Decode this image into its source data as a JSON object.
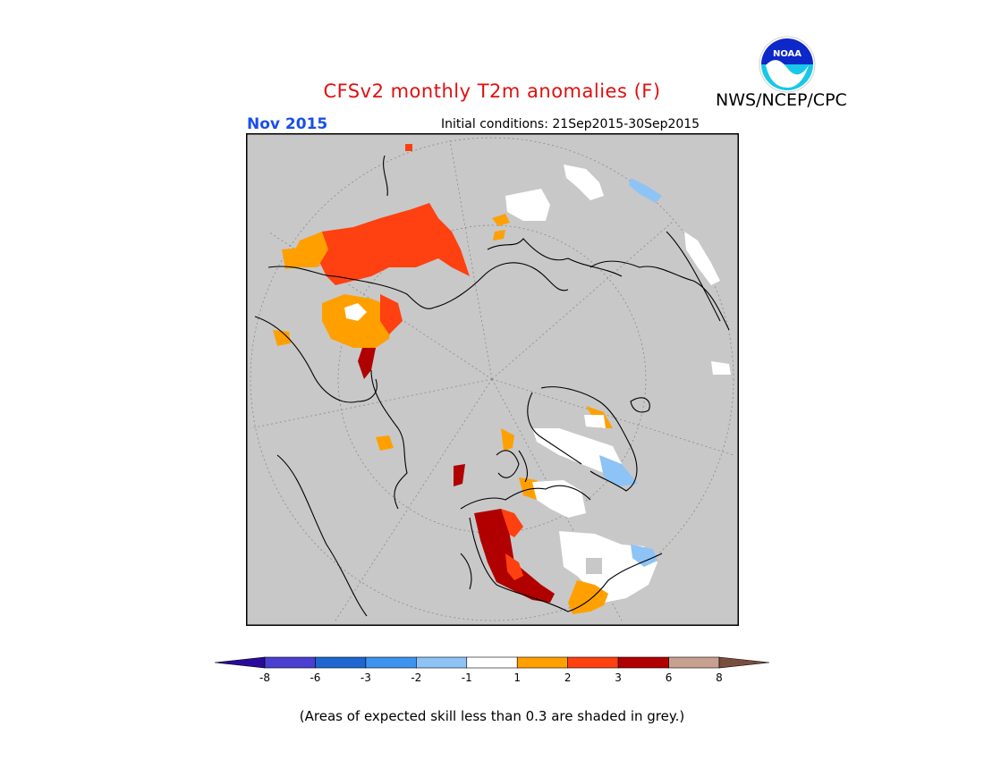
{
  "header": {
    "title": "CFSv2 monthly T2m anomalies (F)",
    "agency": "NWS/NCEP/CPC",
    "logo_text": "NOAA",
    "month": "Nov 2015",
    "initial_conditions": "Initial conditions: 21Sep2015-30Sep2015"
  },
  "colors": {
    "title": "#e01010",
    "month": "#1a4fe8",
    "grey_mask": "#c8c8c8",
    "coastline": "#000000"
  },
  "legend": {
    "bins": [
      {
        "color": "#2a0a9a"
      },
      {
        "color": "#4a3fd0"
      },
      {
        "color": "#1f66d0"
      },
      {
        "color": "#3f93ee"
      },
      {
        "color": "#8ec3f6"
      },
      {
        "color": "#ffffff"
      },
      {
        "color": "#ffa000"
      },
      {
        "color": "#ff4010"
      },
      {
        "color": "#b00000"
      },
      {
        "color": "#c8a090"
      },
      {
        "color": "#7a4e3e"
      }
    ],
    "tick_labels": [
      "-8",
      "-6",
      "-3",
      "-2",
      "-1",
      "1",
      "2",
      "3",
      "6",
      "8"
    ]
  },
  "footnote": "(Areas of expected skill less than 0.3 are shaded in grey.)"
}
